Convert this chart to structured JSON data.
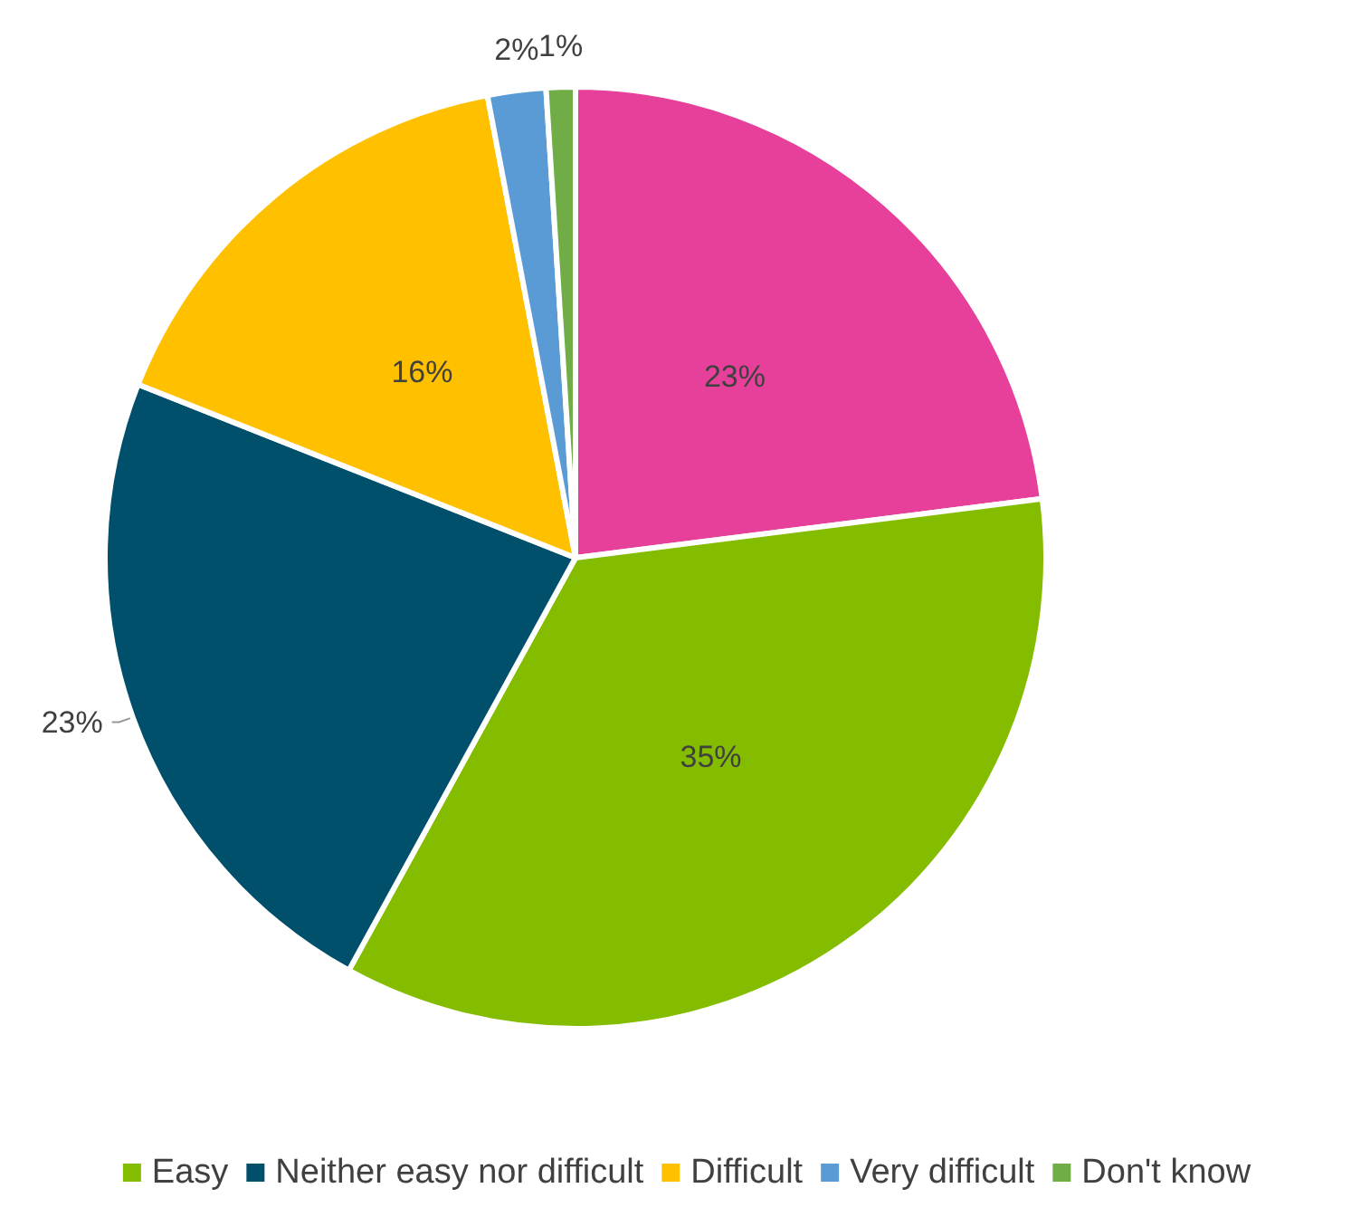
{
  "chart_data": {
    "type": "pie",
    "categories": [
      null,
      "Easy",
      "Neither easy nor difficult",
      "Difficult",
      "Very difficult",
      "Don't know"
    ],
    "values": [
      23,
      35,
      23,
      16,
      2,
      1
    ],
    "value_labels": [
      "23%",
      "35%",
      "23%",
      "16%",
      "2%",
      "1%"
    ],
    "colors": [
      "#e6409a",
      "#84bd00",
      "#004f6b",
      "#ffc000",
      "#5b9bd5",
      "#70ad47"
    ],
    "legend": "bottom"
  }
}
